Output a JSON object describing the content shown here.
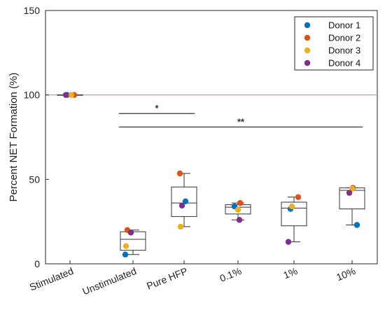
{
  "chart_data": {
    "type": "box",
    "title": "",
    "xlabel": "",
    "ylabel": "Percent NET Formation (%)",
    "ylim": [
      0,
      150
    ],
    "yticks": [
      0,
      50,
      100,
      150
    ],
    "categories": [
      "Stimulated",
      "Unstimulated",
      "Pure HFP",
      "0.1%",
      "1%",
      "10%"
    ],
    "reference_line": {
      "y": 100,
      "color": "#f08080"
    },
    "boxes": [
      {
        "category": "Stimulated",
        "min": 100,
        "q1": 100,
        "median": 100,
        "q3": 100,
        "max": 100
      },
      {
        "category": "Unstimulated",
        "min": 5.5,
        "q1": 8,
        "median": 14.5,
        "q3": 19,
        "max": 20
      },
      {
        "category": "Pure HFP",
        "min": 22,
        "q1": 28,
        "median": 36,
        "q3": 45.5,
        "max": 53.5
      },
      {
        "category": "0.1%",
        "min": 26,
        "q1": 29.5,
        "median": 33.5,
        "q3": 35,
        "max": 36
      },
      {
        "category": "1%",
        "min": 13,
        "q1": 22.5,
        "median": 33,
        "q3": 36.5,
        "max": 39.5
      },
      {
        "category": "10%",
        "min": 23,
        "q1": 32.5,
        "median": 43.5,
        "q3": 45,
        "max": 45
      }
    ],
    "series": [
      {
        "name": "Donor 1",
        "color": "#0072bd",
        "values": [
          100,
          5.5,
          37,
          34,
          32.5,
          23
        ]
      },
      {
        "name": "Donor 2",
        "color": "#d95319",
        "values": [
          100,
          20,
          53.5,
          36,
          39.5,
          45
        ]
      },
      {
        "name": "Donor 3",
        "color": "#edb120",
        "values": [
          100,
          10.5,
          22,
          32,
          34,
          44.5
        ]
      },
      {
        "name": "Donor 4",
        "color": "#7e2f8e",
        "values": [
          100,
          18.5,
          34.5,
          26,
          13,
          42
        ]
      }
    ],
    "significance": [
      {
        "label": "*",
        "from": "Unstimulated",
        "to": "Pure HFP",
        "y": 89
      },
      {
        "label": "**",
        "from": "Unstimulated",
        "to": "10%",
        "y": 81
      }
    ],
    "legend_position": "top-right",
    "grid": false
  }
}
